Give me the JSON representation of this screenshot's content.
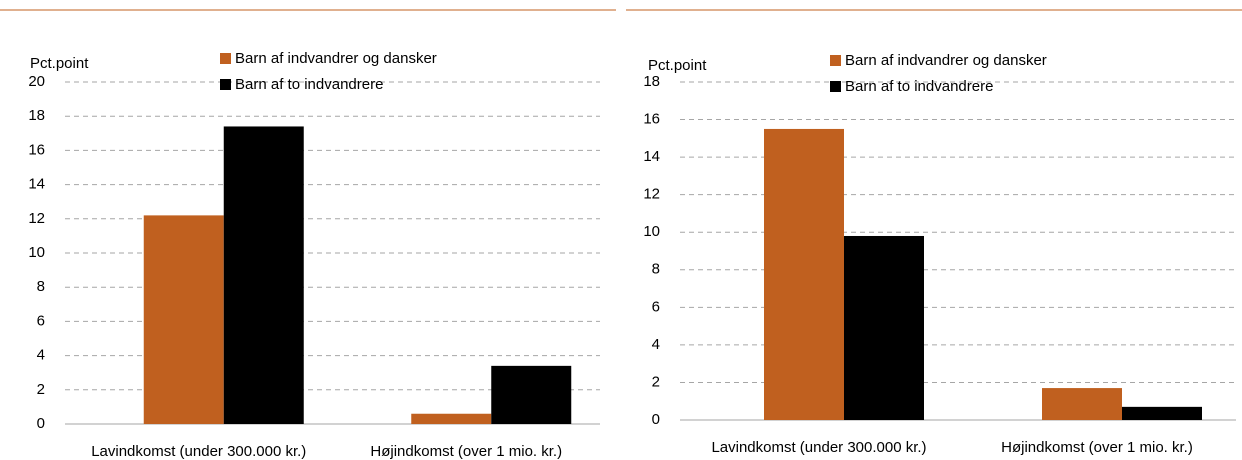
{
  "chart_data": [
    {
      "type": "bar",
      "y_label": "Pct.point",
      "categories": [
        "Lavindkomst (under 300.000 kr.)",
        "Højindkomst (over 1 mio. kr.)"
      ],
      "series": [
        {
          "name": "Barn af indvandrer og dansker",
          "color": "#c0601f",
          "values": [
            12.2,
            0.6
          ]
        },
        {
          "name": "Barn af to indvandrere",
          "color": "#000000",
          "values": [
            17.4,
            3.4
          ]
        }
      ],
      "ylim": [
        0,
        20
      ],
      "yticks": [
        0,
        2,
        4,
        6,
        8,
        10,
        12,
        14,
        16,
        18,
        20
      ],
      "grid": true
    },
    {
      "type": "bar",
      "y_label": "Pct.point",
      "categories": [
        "Lavindkomst (under 300.000 kr.)",
        "Højindkomst (over 1 mio. kr.)"
      ],
      "series": [
        {
          "name": "Barn af indvandrer og dansker",
          "color": "#c0601f",
          "values": [
            15.5,
            1.7
          ]
        },
        {
          "name": "Barn af to indvandrere",
          "color": "#000000",
          "values": [
            9.8,
            0.7
          ]
        }
      ],
      "ylim": [
        0,
        18
      ],
      "yticks": [
        0,
        2,
        4,
        6,
        8,
        10,
        12,
        14,
        16,
        18
      ],
      "grid": true
    }
  ]
}
